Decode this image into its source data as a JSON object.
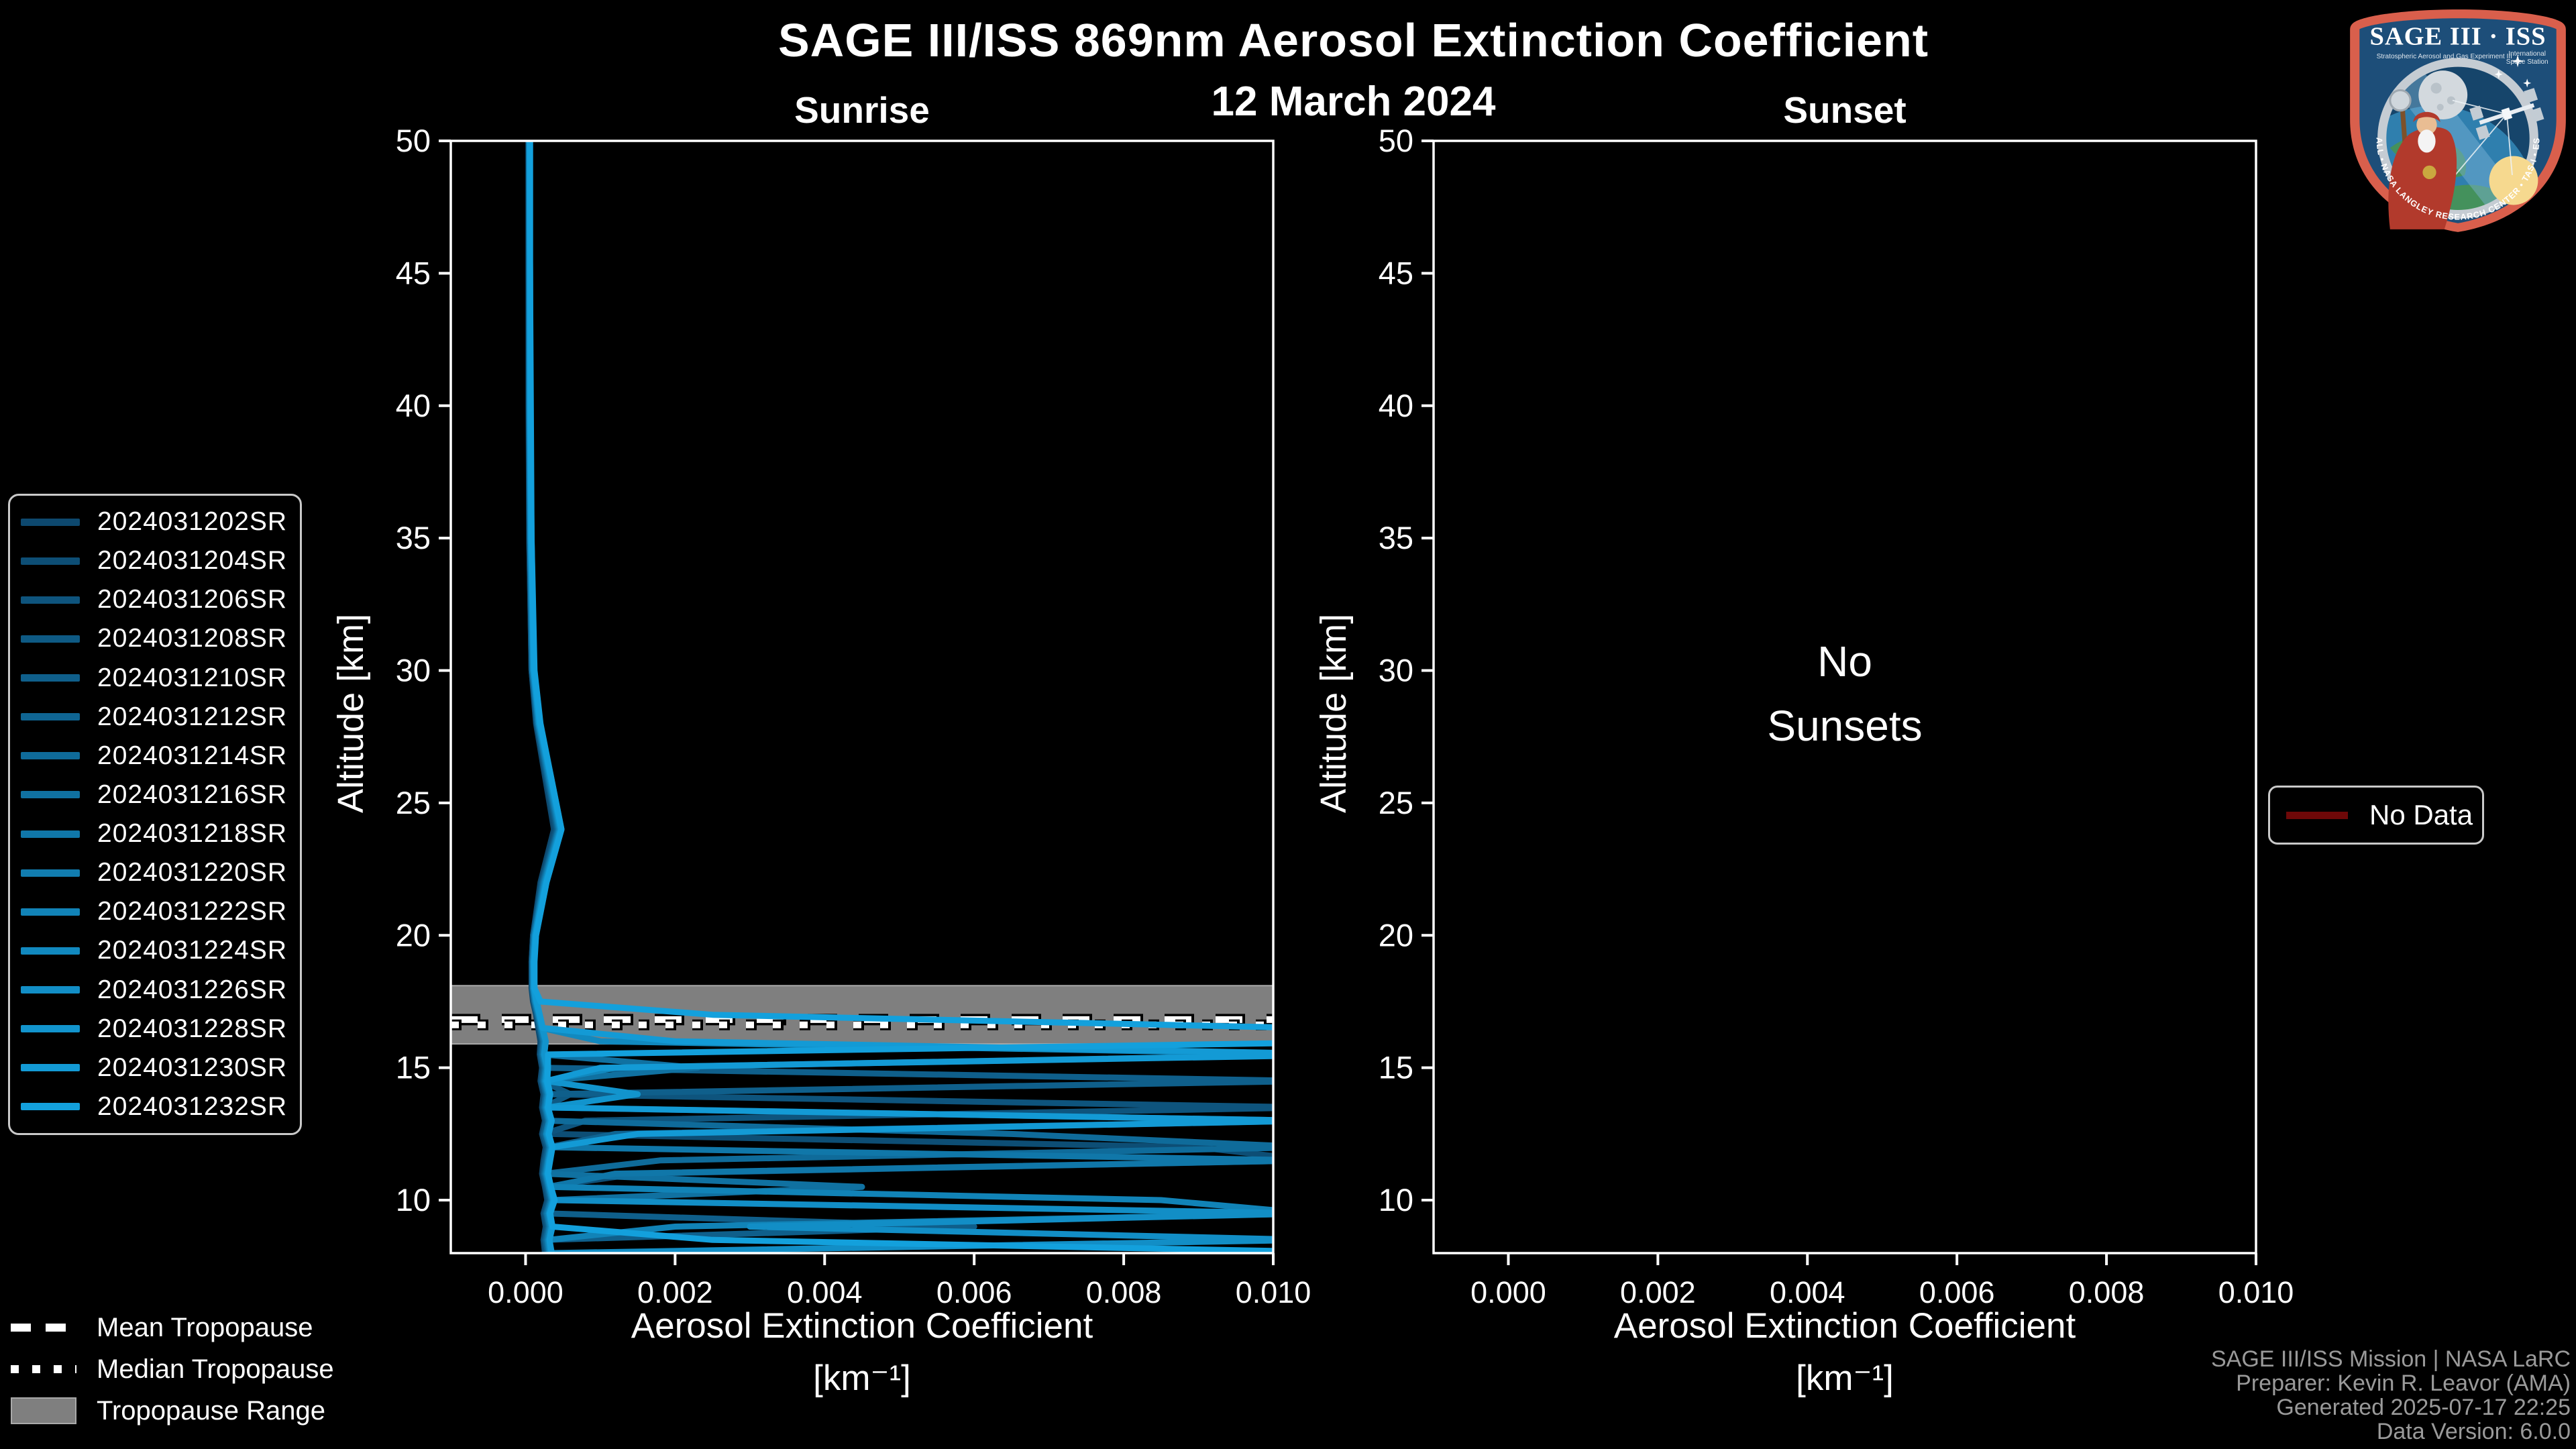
{
  "chart_data": {
    "type": "line",
    "title": "SAGE III/ISS 869nm Aerosol Extinction Coefficient",
    "subtitle": "12 March 2024",
    "xlabel_line1": "Aerosol Extinction Coefficient",
    "xlabel_line2": "[km⁻¹]",
    "ylabel": "Altitude [km]",
    "xlim": [
      -0.001,
      0.01
    ],
    "ylim": [
      8,
      50
    ],
    "grid": false,
    "legend_position": "left",
    "x_tick_values": [
      0.0,
      0.002,
      0.004,
      0.006,
      0.008,
      0.01
    ],
    "x_tick_labels": [
      "0.000",
      "0.002",
      "0.004",
      "0.006",
      "0.008",
      "0.010"
    ],
    "y_tick_values": [
      50,
      45,
      40,
      35,
      30,
      25,
      20,
      15,
      10
    ],
    "values_scale": 0.0001,
    "altitude_grid_km": [
      50,
      45,
      40,
      35,
      30,
      28,
      26,
      24,
      22,
      20,
      19,
      18,
      17.5,
      17,
      16.5,
      16,
      15.5,
      15,
      14.5,
      14,
      13.5,
      13,
      12.5,
      12,
      11.5,
      11,
      10.5,
      10,
      9.5,
      9,
      8.5,
      8
    ],
    "panels": [
      {
        "name": "Sunrise",
        "tropopause": {
          "mean_km": 16.82,
          "median_km": 16.62,
          "range_km": [
            15.9,
            18.1
          ]
        },
        "series": [
          {
            "name": "2024031202SR",
            "color": "#0d486e",
            "values": [
              0.4,
              0.4,
              0.4,
              0.5,
              0.8,
              1.4,
              2.6,
              3.8,
              2.0,
              1.0,
              0.8,
              0.8,
              1.0,
              1.4,
              1.7,
              2.0,
              1.9,
              2.2,
              2.0,
              2.4,
              2.2,
              2.6,
              2.2,
              2.7,
              2.4,
              2.2,
              2.6,
              2.9,
              2.4,
              2.7,
              2.4,
              2.6
            ]
          },
          {
            "name": "2024031204SR",
            "color": "#0d4e75",
            "values": [
              0.4,
              0.4,
              0.5,
              0.5,
              0.8,
              1.5,
              2.7,
              4.0,
              2.1,
              1.0,
              0.8,
              0.9,
              1.1,
              1.5,
              1.8,
              2.1,
              2.0,
              2.3,
              2.1,
              2.5,
              2.3,
              2.7,
              3.5,
              90,
              105,
              15,
              2.7,
              3.0,
              2.5,
              2.8,
              2.5,
              2.7
            ]
          },
          {
            "name": "2024031206SR",
            "color": "#0e547d",
            "values": [
              0.4,
              0.5,
              0.5,
              0.6,
              0.8,
              1.5,
              2.8,
              4.1,
              2.2,
              1.0,
              0.9,
              0.9,
              1.1,
              1.5,
              1.8,
              2.2,
              2.0,
              2.4,
              2.2,
              2.6,
              105,
              8,
              2.4,
              2.9,
              2.6,
              2.4,
              2.8,
              3.1,
              2.6,
              2.9,
              2.6,
              2.8
            ]
          },
          {
            "name": "2024031208SR",
            "color": "#0e5a84",
            "values": [
              0.5,
              0.5,
              0.5,
              0.6,
              0.9,
              1.5,
              2.8,
              4.2,
              2.2,
              1.1,
              0.9,
              0.9,
              1.1,
              1.5,
              1.9,
              2.2,
              2.1,
              2.4,
              2.2,
              6.0,
              2.4,
              2.8,
              2.4,
              3.0,
              2.6,
              2.4,
              2.8,
              3.2,
              2.7,
              3.0,
              2.6,
              2.9
            ]
          },
          {
            "name": "2024031210SR",
            "color": "#0f5f8b",
            "values": [
              0.5,
              0.5,
              0.5,
              0.6,
              0.9,
              1.6,
              2.9,
              4.3,
              2.3,
              1.1,
              0.9,
              0.9,
              1.2,
              1.6,
              1.9,
              2.3,
              2.1,
              2.5,
              105,
              2.7,
              2.5,
              2.9,
              2.5,
              3.1,
              2.7,
              2.5,
              2.9,
              3.3,
              2.7,
              60,
              2.7,
              3.0
            ]
          },
          {
            "name": "2024031212SR",
            "color": "#0f6593",
            "values": [
              0.5,
              0.5,
              0.5,
              0.6,
              0.9,
              1.6,
              2.9,
              4.3,
              2.3,
              1.1,
              0.9,
              0.9,
              1.2,
              1.6,
              2.0,
              2.3,
              2.2,
              2.5,
              2.3,
              2.7,
              2.5,
              105,
              12,
              3.1,
              2.8,
              2.5,
              3.0,
              3.3,
              2.8,
              3.1,
              2.7,
              3.0
            ]
          },
          {
            "name": "2024031214SR",
            "color": "#0f6b9a",
            "values": [
              0.5,
              0.5,
              0.5,
              0.6,
              0.9,
              1.6,
              3.0,
              4.4,
              2.4,
              1.1,
              0.9,
              1.0,
              1.2,
              1.6,
              2.0,
              2.4,
              2.2,
              2.6,
              2.4,
              2.8,
              2.6,
              3.0,
              65,
              105,
              18,
              2.6,
              3.0,
              3.4,
              2.8,
              3.2,
              2.8,
              3.1
            ]
          },
          {
            "name": "2024031216SR",
            "color": "#1071a1",
            "values": [
              0.5,
              0.5,
              0.5,
              0.6,
              0.9,
              1.7,
              3.0,
              4.4,
              2.4,
              1.2,
              1.0,
              1.0,
              1.2,
              1.7,
              2.0,
              2.4,
              2.3,
              23,
              2.4,
              2.9,
              2.6,
              3.1,
              2.7,
              3.2,
              2.9,
              2.6,
              45,
              3.4,
              2.9,
              3.2,
              2.9,
              3.1
            ]
          },
          {
            "name": "2024031218SR",
            "color": "#1077a9",
            "values": [
              0.5,
              0.5,
              0.5,
              0.7,
              1.0,
              1.7,
              3.1,
              4.5,
              2.5,
              1.2,
              1.0,
              1.0,
              1.3,
              1.7,
              2.1,
              2.5,
              2.3,
              2.7,
              2.5,
              2.9,
              2.7,
              3.1,
              2.7,
              3.3,
              105,
              12,
              3.1,
              3.5,
              2.9,
              3.3,
              2.9,
              3.2
            ]
          },
          {
            "name": "2024031220SR",
            "color": "#117db0",
            "values": [
              0.5,
              0.5,
              0.6,
              0.7,
              1.0,
              1.7,
              3.1,
              4.5,
              2.5,
              1.2,
              1.0,
              1.0,
              1.3,
              1.7,
              2.1,
              2.5,
              2.4,
              2.7,
              2.5,
              3.0,
              2.7,
              3.2,
              2.8,
              3.3,
              3.0,
              2.7,
              3.1,
              3.5,
              3.0,
              3.3,
              3.0,
              3.2
            ]
          },
          {
            "name": "2024031222SR",
            "color": "#1183b7",
            "values": [
              0.5,
              0.6,
              0.6,
              0.7,
              1.0,
              1.8,
              3.2,
              4.6,
              2.6,
              1.2,
              1.0,
              1.1,
              1.3,
              1.8,
              2.2,
              2.6,
              2.4,
              2.8,
              2.6,
              3.0,
              2.8,
              3.2,
              2.8,
              3.4,
              3.0,
              2.8,
              3.2,
              85,
              105,
              20,
              3.0,
              3.3
            ]
          },
          {
            "name": "2024031224SR",
            "color": "#1189bf",
            "values": [
              0.5,
              0.6,
              0.6,
              0.7,
              1.0,
              1.8,
              3.2,
              4.6,
              2.6,
              1.3,
              1.1,
              1.1,
              1.4,
              1.8,
              2.2,
              10,
              108,
              12,
              2.6,
              3.1,
              2.8,
              3.3,
              2.9,
              3.4,
              3.1,
              2.8,
              3.2,
              3.6,
              3.1,
              3.4,
              3.1,
              3.3
            ]
          },
          {
            "name": "2024031226SR",
            "color": "#128ec6",
            "values": [
              0.5,
              0.6,
              0.6,
              0.7,
              1.1,
              1.8,
              3.3,
              4.7,
              2.7,
              1.3,
              1.1,
              1.1,
              1.4,
              1.8,
              2.2,
              2.7,
              2.5,
              2.9,
              2.7,
              3.1,
              2.9,
              3.3,
              2.9,
              3.5,
              3.1,
              2.9,
              3.3,
              3.7,
              105,
              30,
              105,
              3.4
            ]
          },
          {
            "name": "2024031228SR",
            "color": "#1294cd",
            "values": [
              0.6,
              0.6,
              0.6,
              0.7,
              1.1,
              1.9,
              3.3,
              4.7,
              2.7,
              1.3,
              1.1,
              1.1,
              1.4,
              1.9,
              2.3,
              2.7,
              2.5,
              2.9,
              2.7,
              15,
              2.9,
              3.4,
              3.0,
              3.5,
              3.2,
              2.9,
              3.3,
              3.7,
              3.2,
              3.5,
              3.2,
              3.4
            ]
          },
          {
            "name": "2024031230SR",
            "color": "#139ad5",
            "values": [
              0.6,
              0.6,
              0.6,
              0.8,
              1.1,
              1.9,
              3.4,
              4.8,
              2.8,
              1.4,
              1.1,
              1.2,
              1.5,
              1.9,
              2.3,
              20,
              112,
              10,
              2.8,
              3.2,
              3.0,
              105,
              15,
              3.6,
              3.2,
              3.0,
              3.4,
              3.8,
              3.2,
              3.6,
              3.2,
              3.5
            ]
          },
          {
            "name": "2024031232SR",
            "color": "#13a0dc",
            "values": [
              0.6,
              0.6,
              0.7,
              0.8,
              1.2,
              2.0,
              3.4,
              4.8,
              2.8,
              1.4,
              1.2,
              1.2,
              2.0,
              25,
              105,
              118,
              3.0,
              3.0,
              2.9,
              3.3,
              3.0,
              3.5,
              3.1,
              3.6,
              3.3,
              3.0,
              3.4,
              3.9,
              3.3,
              3.6,
              25,
              115
            ]
          }
        ]
      },
      {
        "name": "Sunset",
        "message_line1": "No",
        "message_line2": "Sunsets",
        "series": []
      }
    ]
  },
  "tropopause_legend": {
    "items": [
      {
        "label": "Mean Tropopause",
        "style": "dashed"
      },
      {
        "label": "Median Tropopause",
        "style": "dotted"
      },
      {
        "label": "Tropopause Range",
        "style": "patch"
      }
    ]
  },
  "no_data_legend": {
    "label": "No Data",
    "color": "#6e0808"
  },
  "footer": {
    "lines": [
      "SAGE III/ISS Mission | NASA LaRC",
      "Preparer: Kevin R. Leavor (AMA)",
      "Generated 2025-07-17 22:25",
      "Data Version: 6.0.0"
    ]
  },
  "logo": {
    "title": "SAGE III · ISS",
    "tagline_left": "Stratospheric Aerosol and Gas Experiment III",
    "tagline_right_line1": "International",
    "tagline_right_line2": "Space Station",
    "ring_text": "BALL • NASA LANGLEY RESEARCH CENTER • TAS-I • ESA"
  },
  "colors": {
    "background": "#000000",
    "axis": "#ffffff",
    "tropopause_band": "#7f7f7f",
    "no_data_line": "#6e0808",
    "footer_text": "#9a9a9a"
  }
}
